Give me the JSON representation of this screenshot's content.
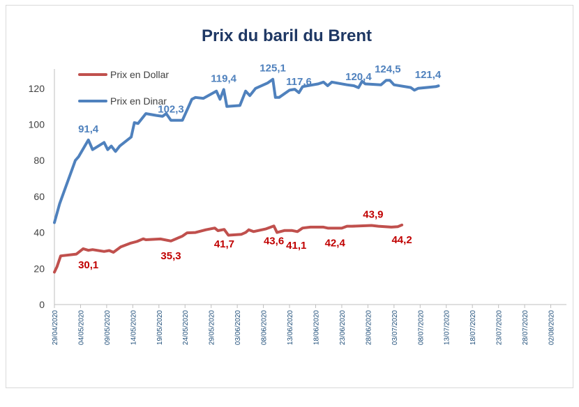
{
  "chart_data": {
    "type": "line",
    "title": "Prix du baril du Brent",
    "xlabel": "",
    "ylabel": "",
    "ylim": [
      0,
      130
    ],
    "yticks": [
      0,
      20,
      40,
      60,
      80,
      100,
      120
    ],
    "grid": false,
    "legend_position": "top-left",
    "colors": {
      "dollar": "#c0504d",
      "dinar": "#4f81bd",
      "title": "#1f3864"
    },
    "xticks": [
      {
        "day": 0,
        "label": "29/04/2020"
      },
      {
        "day": 5,
        "label": "04/05/2020"
      },
      {
        "day": 10,
        "label": "09/05/2020"
      },
      {
        "day": 15,
        "label": "14/05/2020"
      },
      {
        "day": 20,
        "label": "19/05/2020"
      },
      {
        "day": 25,
        "label": "24/05/2020"
      },
      {
        "day": 30,
        "label": "29/05/2020"
      },
      {
        "day": 35,
        "label": "03/06/2020"
      },
      {
        "day": 40,
        "label": "08/06/2020"
      },
      {
        "day": 45,
        "label": "13/06/2020"
      },
      {
        "day": 50,
        "label": "18/06/2020"
      },
      {
        "day": 55,
        "label": "23/06/2020"
      },
      {
        "day": 60,
        "label": "28/06/2020"
      },
      {
        "day": 65,
        "label": "03/07/2020"
      },
      {
        "day": 70,
        "label": "08/07/2020"
      },
      {
        "day": 75,
        "label": "13/07/2020"
      },
      {
        "day": 80,
        "label": "18/07/2020"
      },
      {
        "day": 85,
        "label": "23/07/2020"
      },
      {
        "day": 90,
        "label": "28/07/2020"
      },
      {
        "day": 95,
        "label": "02/08/2020"
      }
    ],
    "series": [
      {
        "key": "dinar",
        "name": "Prix en Dinar",
        "points": [
          [
            0,
            45.5
          ],
          [
            1,
            56
          ],
          [
            2,
            64
          ],
          [
            3,
            72
          ],
          [
            4,
            80
          ],
          [
            4.6,
            82
          ],
          [
            6.5,
            91.4
          ],
          [
            7.3,
            86
          ],
          [
            9.5,
            90
          ],
          [
            10.2,
            86
          ],
          [
            10.9,
            88
          ],
          [
            11.7,
            85
          ],
          [
            12.5,
            88
          ],
          [
            14.7,
            93
          ],
          [
            15.3,
            101
          ],
          [
            16,
            100.5
          ],
          [
            17.5,
            106
          ],
          [
            19.5,
            105
          ],
          [
            20.7,
            104.5
          ],
          [
            21.4,
            106
          ],
          [
            22.3,
            102.3
          ],
          [
            24.5,
            102.3
          ],
          [
            25.7,
            110
          ],
          [
            26.3,
            114
          ],
          [
            27,
            115
          ],
          [
            28.5,
            114.5
          ],
          [
            31,
            118.5
          ],
          [
            31.7,
            114
          ],
          [
            32.4,
            119.4
          ],
          [
            33,
            110
          ],
          [
            35.5,
            110.5
          ],
          [
            36.6,
            118.5
          ],
          [
            37.4,
            116
          ],
          [
            38.5,
            120
          ],
          [
            40.8,
            123
          ],
          [
            41.8,
            125.1
          ],
          [
            42.3,
            115
          ],
          [
            43,
            115
          ],
          [
            45,
            119
          ],
          [
            46,
            119.5
          ],
          [
            46.8,
            117.6
          ],
          [
            47.5,
            121
          ],
          [
            50.5,
            122.5
          ],
          [
            51.5,
            123.5
          ],
          [
            52.3,
            121.5
          ],
          [
            53.1,
            123.5
          ],
          [
            56,
            122
          ],
          [
            57.3,
            121.5
          ],
          [
            58.2,
            120.4
          ],
          [
            58.9,
            124
          ],
          [
            59.5,
            122.5
          ],
          [
            62.5,
            122
          ],
          [
            63.5,
            124.5
          ],
          [
            64.2,
            124.5
          ],
          [
            65,
            122
          ],
          [
            68.2,
            120.5
          ],
          [
            68.9,
            119
          ],
          [
            69.6,
            120
          ],
          [
            73,
            121
          ],
          [
            73.5,
            121.4
          ]
        ]
      },
      {
        "key": "dollar",
        "name": "Prix en Dollar",
        "points": [
          [
            0,
            18
          ],
          [
            0.5,
            21
          ],
          [
            1.2,
            27
          ],
          [
            4.2,
            28
          ],
          [
            5.5,
            31
          ],
          [
            6.5,
            30.1
          ],
          [
            7.3,
            30.5
          ],
          [
            9.5,
            29.5
          ],
          [
            10.5,
            30
          ],
          [
            11.3,
            29
          ],
          [
            12.7,
            32
          ],
          [
            14.5,
            34
          ],
          [
            15.8,
            35
          ],
          [
            17,
            36.5
          ],
          [
            17.5,
            36
          ],
          [
            20.3,
            36.4
          ],
          [
            22.3,
            35.3
          ],
          [
            24.5,
            38
          ],
          [
            25.4,
            39.8
          ],
          [
            27,
            40
          ],
          [
            29,
            41.5
          ],
          [
            30.7,
            42.5
          ],
          [
            31.3,
            41
          ],
          [
            32.5,
            41.7
          ],
          [
            33.3,
            38.5
          ],
          [
            35.8,
            39
          ],
          [
            36.6,
            40
          ],
          [
            37.2,
            41.5
          ],
          [
            38.1,
            40.5
          ],
          [
            40.5,
            42
          ],
          [
            42,
            43.6
          ],
          [
            42.6,
            40
          ],
          [
            44,
            41.1
          ],
          [
            45.5,
            41.1
          ],
          [
            46.5,
            40.5
          ],
          [
            47.5,
            42.5
          ],
          [
            49,
            43
          ],
          [
            51.5,
            43
          ],
          [
            52.4,
            42.4
          ],
          [
            55,
            42.4
          ],
          [
            56,
            43.5
          ],
          [
            57,
            43.5
          ],
          [
            60.7,
            43.9
          ],
          [
            62,
            43.5
          ],
          [
            64.5,
            43
          ],
          [
            65.7,
            43.2
          ],
          [
            66.5,
            44.2
          ]
        ]
      }
    ],
    "annotations": [
      {
        "series": "dinar",
        "label": "91,4",
        "at": [
          6.5,
          91.4
        ],
        "placement": "above"
      },
      {
        "series": "dinar",
        "label": "102,3",
        "at": [
          22.3,
          102.3
        ],
        "placement": "above"
      },
      {
        "series": "dinar",
        "label": "119,4",
        "at": [
          32.4,
          119.4
        ],
        "placement": "above"
      },
      {
        "series": "dinar",
        "label": "125,1",
        "at": [
          41.8,
          125.1
        ],
        "placement": "above"
      },
      {
        "series": "dinar",
        "label": "117,6",
        "at": [
          46.8,
          117.6
        ],
        "placement": "above"
      },
      {
        "series": "dinar",
        "label": "120,4",
        "at": [
          58.2,
          120.4
        ],
        "placement": "above"
      },
      {
        "series": "dinar",
        "label": "124,5",
        "at": [
          63.8,
          124.5
        ],
        "placement": "above"
      },
      {
        "series": "dinar",
        "label": "121,4",
        "at": [
          71.5,
          121.4
        ],
        "placement": "above"
      },
      {
        "series": "dollar",
        "label": "30,1",
        "at": [
          6.5,
          30.1
        ],
        "placement": "below"
      },
      {
        "series": "dollar",
        "label": "35,3",
        "at": [
          22.3,
          35.3
        ],
        "placement": "below"
      },
      {
        "series": "dollar",
        "label": "41,7",
        "at": [
          32.5,
          41.7
        ],
        "placement": "below"
      },
      {
        "series": "dollar",
        "label": "43,6",
        "at": [
          42,
          43.6
        ],
        "placement": "below"
      },
      {
        "series": "dollar",
        "label": "41,1",
        "at": [
          46.3,
          41.1
        ],
        "placement": "below"
      },
      {
        "series": "dollar",
        "label": "42,4",
        "at": [
          53.7,
          42.4
        ],
        "placement": "below"
      },
      {
        "series": "dollar",
        "label": "43,9",
        "at": [
          61,
          43.9
        ],
        "placement": "above"
      },
      {
        "series": "dollar",
        "label": "44,2",
        "at": [
          66.5,
          44.2
        ],
        "placement": "below"
      }
    ]
  }
}
